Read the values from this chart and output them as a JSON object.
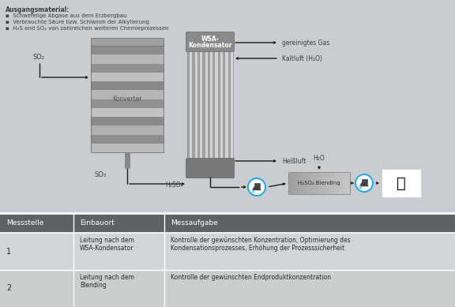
{
  "bg_color": "#c9cdd1",
  "table_header_bg": "#5c6164",
  "table_row_bg": "#d5d8da",
  "title_text": "Ausgangsmaterial:",
  "bullet1": "Schwefelige Abgase aus dem Erzbergbau",
  "bullet2": "Verbrauchte Säure bzw. Schlamm der Alkylierung",
  "bullet3": "H₂S and SO₂ von zahlreichen weiteren Chemieprozessen",
  "label_SO2_top": "SO₂",
  "label_SO3": "SO₃",
  "label_H2SO4": "H₂SO₄",
  "label_H2O": "H₂O",
  "label_Heissluft": "Heißluft",
  "label_gereinigtes_Gas": "gereinigtes Gas",
  "label_Kaltluft": "Kaltluft (H₂O)",
  "label_WSA_line1": "WSA-",
  "label_WSA_line2": "Kondensator",
  "label_Konverter": "Konverter",
  "label_blending": "H₂SO₄ Blending",
  "col1_header": "Messstelle",
  "col2_header": "Einbauort",
  "col3_header": "Messaufgabe",
  "row1_col1": "1",
  "row1_col2": "Leitung nach dem\nWSA-Kondensator",
  "row1_col3": "Kontrolle der gewünschten Konzentration, Optimierung des\nKondensationsprozesses, Erhöhung der Prozesssicherheit",
  "row2_col1": "2",
  "row2_col2": "Leitung nach dem\nBlending",
  "row2_col3": "Kontrolle der gewünschten Endproduktkonzentration",
  "sensor_color": "#29aae1",
  "arrow_color": "#1a1a1a",
  "text_color": "#3d3d3d"
}
